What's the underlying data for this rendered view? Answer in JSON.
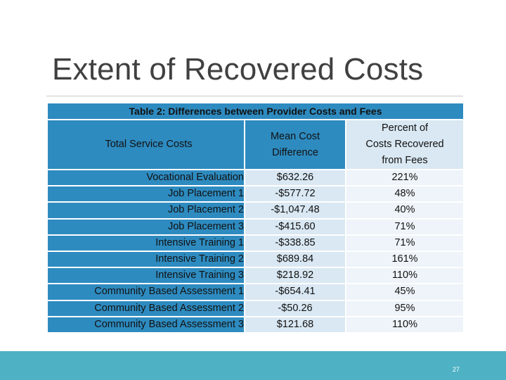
{
  "slide": {
    "title": "Extent of Recovered Costs",
    "page_number": "27"
  },
  "table": {
    "caption": "Table 2: Differences between Provider Costs and Fees",
    "headers": {
      "service": "Total Service Costs",
      "mean": [
        "Mean Cost",
        "Difference"
      ],
      "percent": [
        "Percent of",
        "Costs Recovered",
        "from Fees"
      ]
    },
    "rows": [
      {
        "service": "Vocational Evaluation",
        "mean": "$632.26",
        "percent": "221%"
      },
      {
        "service": "Job Placement 1",
        "mean": "-$577.72",
        "percent": "48%"
      },
      {
        "service": "Job Placement 2",
        "mean": "-$1,047.48",
        "percent": "40%"
      },
      {
        "service": "Job Placement 3",
        "mean": "-$415.60",
        "percent": "71%"
      },
      {
        "service": "Intensive Training 1",
        "mean": "-$338.85",
        "percent": "71%"
      },
      {
        "service": "Intensive Training 2",
        "mean": "$689.84",
        "percent": "161%"
      },
      {
        "service": "Intensive Training 3",
        "mean": "$218.92",
        "percent": "110%"
      },
      {
        "service": "Community Based Assessment 1",
        "mean": "-$654.41",
        "percent": "45%"
      },
      {
        "service": "Community Based Assessment 2",
        "mean": "-$50.26",
        "percent": "95%"
      },
      {
        "service": "Community Based Assessment 3",
        "mean": "$121.68",
        "percent": "110%"
      }
    ]
  },
  "colors": {
    "header_blue": "#2e8bc0",
    "mean_column": "#d9e8f3",
    "percent_column": "#eef4f9",
    "footer_teal": "#4eb2c4"
  }
}
